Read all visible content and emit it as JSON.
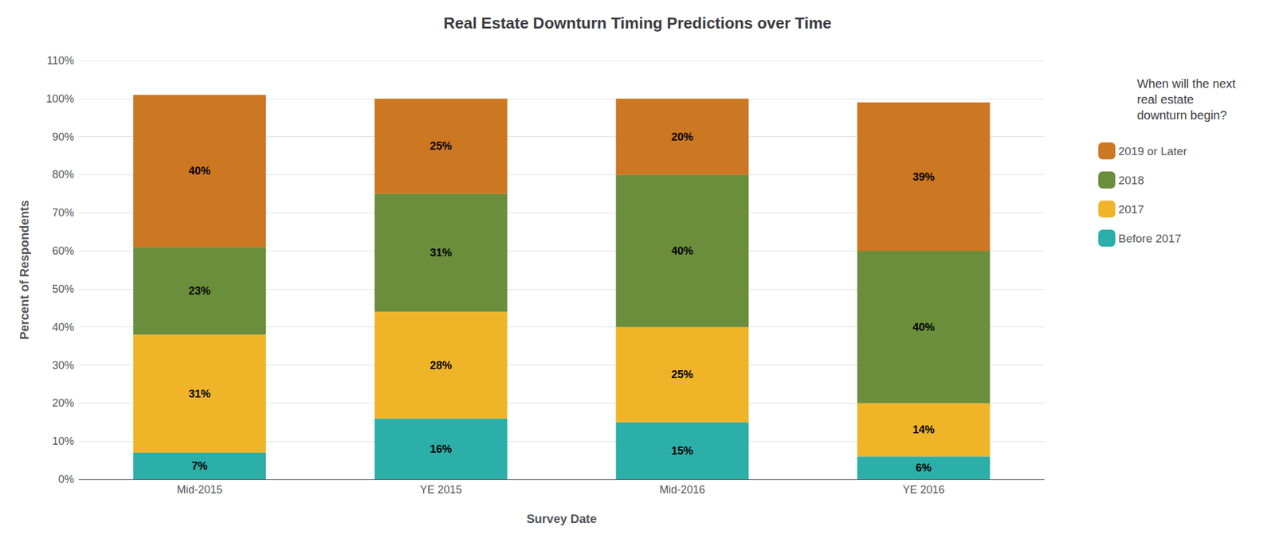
{
  "chart_data": {
    "type": "bar",
    "title": "Real Estate Downturn Timing Predictions over Time",
    "x_label": "Survey Date",
    "y_label": "Percent of Respondents",
    "legend_title": "When will the next\nreal estate\ndownturn begin?",
    "categories": [
      "Mid-2015",
      "YE 2015",
      "Mid-2016",
      "YE 2016"
    ],
    "series": [
      {
        "name": "Before 2017",
        "color": "#2bafa8",
        "values": [
          7,
          16,
          15,
          6
        ],
        "value_labels": [
          "7%",
          "16%",
          "15%",
          "6%"
        ]
      },
      {
        "name": "2017",
        "color": "#f0b429",
        "values": [
          31,
          28,
          25,
          14
        ],
        "value_labels": [
          "31%",
          "28%",
          "25%",
          "14%"
        ]
      },
      {
        "name": "2018",
        "color": "#6b8e3c",
        "values": [
          23,
          31,
          40,
          40
        ],
        "value_labels": [
          "23%",
          "31%",
          "40%",
          "40%"
        ]
      },
      {
        "name": "2019 or Later",
        "color": "#cc7722",
        "values": [
          40,
          25,
          20,
          39
        ],
        "value_labels": [
          "40%",
          "25%",
          "20%",
          "39%"
        ]
      }
    ],
    "stacked": true,
    "data_labels": true,
    "grid": true,
    "legend": "right",
    "ylim": [
      0,
      110
    ],
    "yticks": [
      {
        "value": 0,
        "label": "0%"
      },
      {
        "value": 10,
        "label": "10%"
      },
      {
        "value": 20,
        "label": "20%"
      },
      {
        "value": 30,
        "label": "30%"
      },
      {
        "value": 40,
        "label": "40%"
      },
      {
        "value": 50,
        "label": "50%"
      },
      {
        "value": 60,
        "label": "60%"
      },
      {
        "value": 70,
        "label": "70%"
      },
      {
        "value": 80,
        "label": "80%"
      },
      {
        "value": 90,
        "label": "90%"
      },
      {
        "value": 100,
        "label": "100%"
      },
      {
        "value": 110,
        "label": "110%"
      }
    ]
  }
}
